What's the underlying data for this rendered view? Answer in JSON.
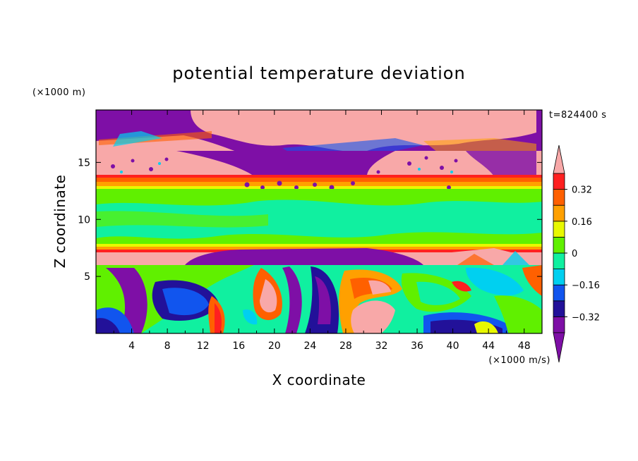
{
  "chart_data": {
    "type": "heatmap",
    "title": "potential temperature deviation",
    "xlabel": "X coordinate",
    "ylabel": "Z coordinate",
    "x_unit": "(×1000 m/s)",
    "y_unit": "(×1000 m)",
    "time_label": "t=824400 s",
    "xlim": [
      0,
      50
    ],
    "ylim": [
      0,
      19.6
    ],
    "x_ticks": [
      4,
      8,
      12,
      16,
      20,
      24,
      28,
      32,
      36,
      40,
      44,
      48
    ],
    "y_ticks": [
      5,
      10,
      15
    ],
    "colorbar": {
      "levels": [
        -0.4,
        -0.32,
        -0.24,
        -0.16,
        -0.08,
        0,
        0.08,
        0.16,
        0.24,
        0.32,
        0.4
      ],
      "tick_labels": [
        "0.32",
        "0.16",
        "0",
        "−0.16",
        "−0.32"
      ],
      "tick_values": [
        0.32,
        0.16,
        0,
        -0.16,
        -0.32
      ],
      "extend": "both",
      "colors": [
        "#7e0fa6",
        "#221199",
        "#1155ee",
        "#00d0f0",
        "#10f0a0",
        "#60f000",
        "#e8f800",
        "#ffa000",
        "#ff6000",
        "#ff2020",
        "#f8a8a8"
      ]
    },
    "grid": false
  }
}
